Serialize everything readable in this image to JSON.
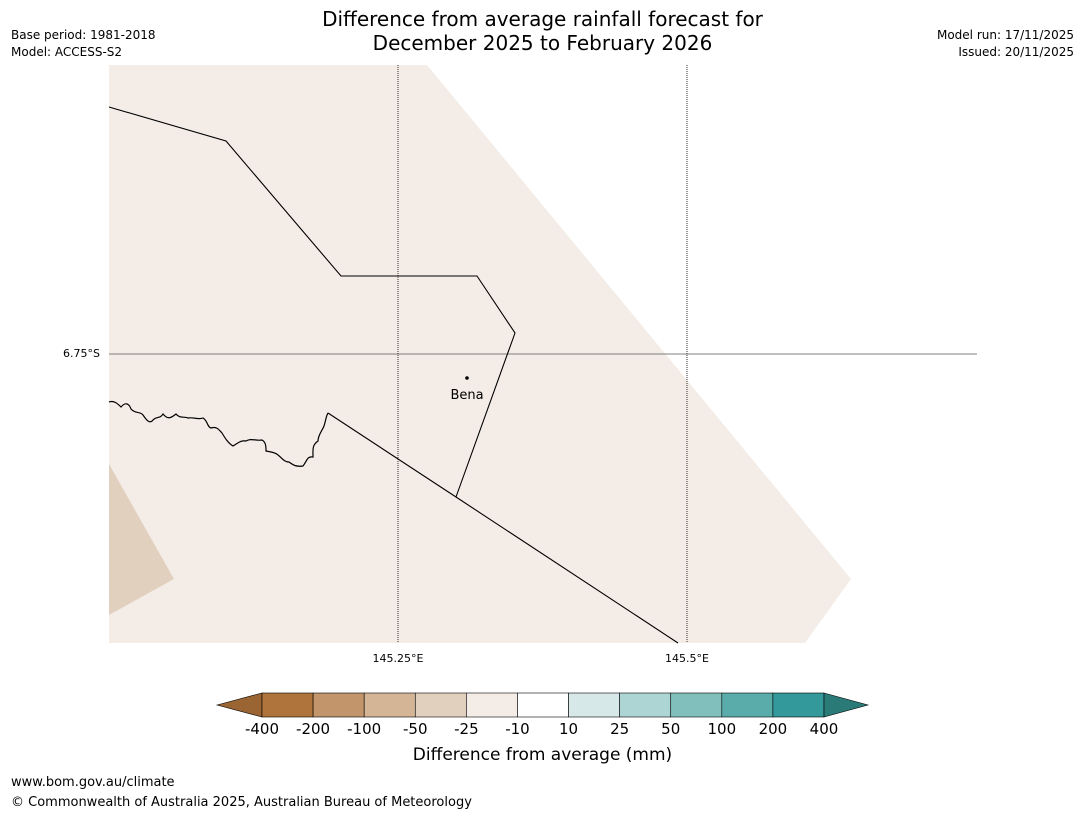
{
  "title": {
    "line1": "Difference from average rainfall forecast for",
    "line2": "December 2025 to February 2026"
  },
  "meta": {
    "base_period": "Base period: 1981-2018",
    "model": "Model: ACCESS-S2",
    "model_run": "Model run: 17/11/2025",
    "issued": "Issued: 20/11/2025"
  },
  "map": {
    "latitude_label": "6.75°S",
    "longitude_labels": [
      "145.25°E",
      "145.5°E"
    ],
    "place": "Bena",
    "main_category_color": "#f4ede7",
    "secondary_category_color": "#e2d0bf"
  },
  "legend": {
    "label": "Difference from average (mm)",
    "ticks": [
      "-400",
      "-200",
      "-100",
      "-50",
      "-25",
      "-10",
      "10",
      "25",
      "50",
      "100",
      "200",
      "400"
    ],
    "colors": [
      "#9a6533",
      "#ae743b",
      "#c2956a",
      "#d4b595",
      "#e2d0bf",
      "#f4ede7",
      "#ffffff",
      "#d6e8e8",
      "#acd5d4",
      "#80bfbc",
      "#5aacab",
      "#34999a",
      "#2a7b78"
    ]
  },
  "footer": {
    "website": "www.bom.gov.au/climate",
    "copyright": "© Commonwealth of Australia 2025, Australian Bureau of Meteorology"
  }
}
